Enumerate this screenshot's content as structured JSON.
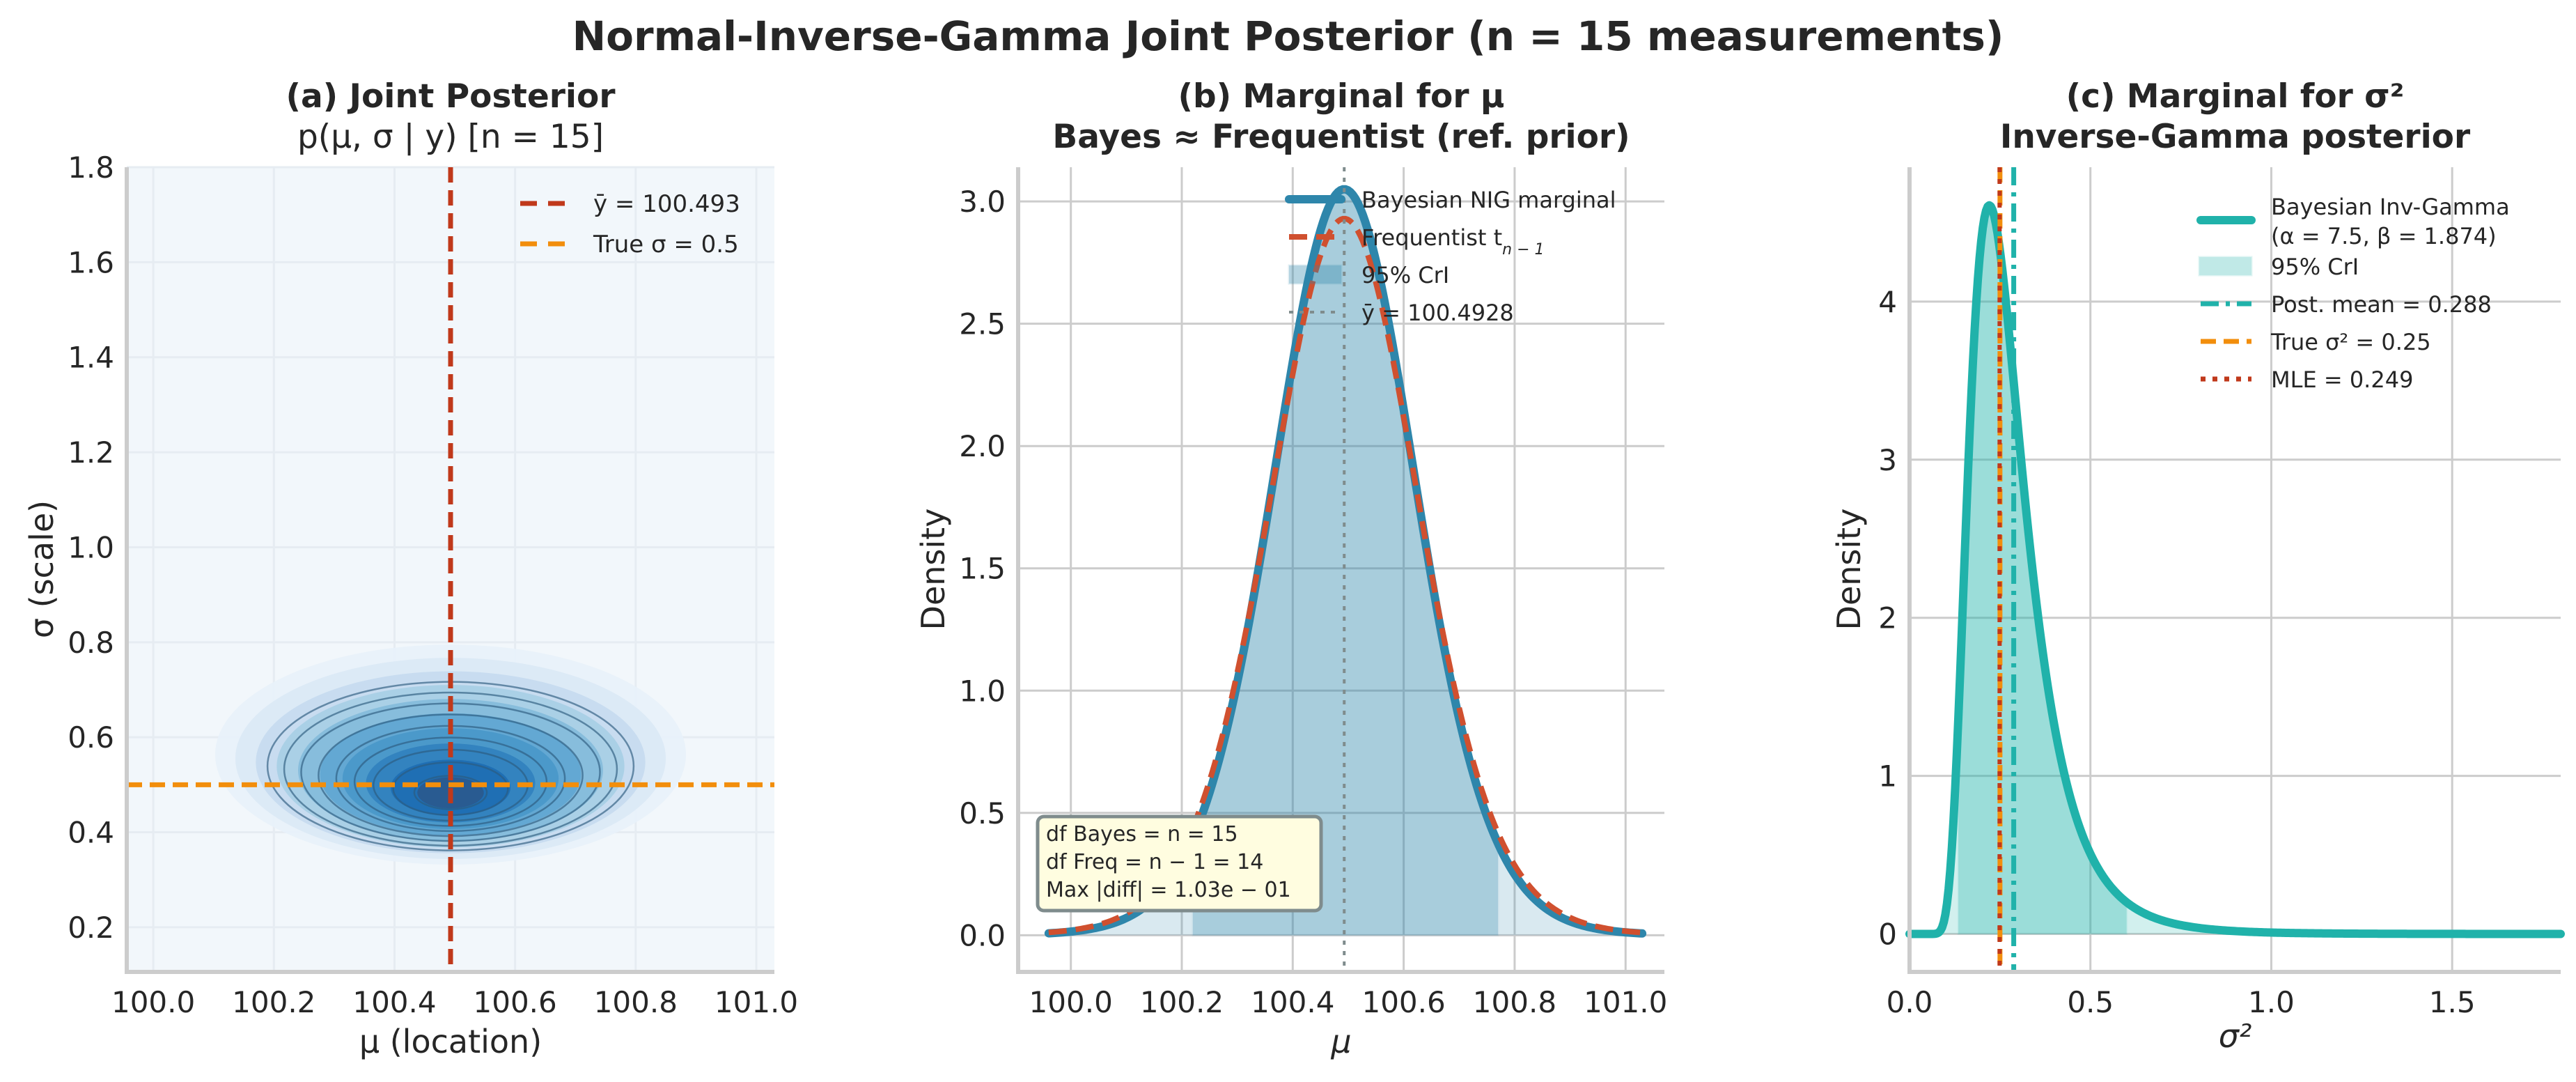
{
  "figure": {
    "suptitle": "Normal-Inverse-Gamma Joint Posterior  (n = 15 measurements)"
  },
  "chart_data": [
    {
      "id": "a",
      "type": "contour",
      "title_line1": "(a) Joint Posterior",
      "title_line2": "p(μ, σ | y)   [n = 15]",
      "xlabel": "μ (location)",
      "ylabel": "σ (scale)",
      "xlim": [
        99.956,
        101.03
      ],
      "ylim": [
        0.106,
        1.8
      ],
      "xticks": [
        100.0,
        100.2,
        100.4,
        100.6,
        100.8,
        101.0
      ],
      "xtick_labels": [
        "100.0",
        "100.2",
        "100.4",
        "100.6",
        "100.8",
        "101.0"
      ],
      "yticks": [
        0.2,
        0.4,
        0.6,
        0.8,
        1.0,
        1.2,
        1.4,
        1.6,
        1.8
      ],
      "ytick_labels": [
        "0.2",
        "0.4",
        "0.6",
        "0.8",
        "1.0",
        "1.2",
        "1.4",
        "1.6",
        "1.8"
      ],
      "grid": true,
      "background": "#f2f7fb",
      "contour": {
        "colormap": "Blues",
        "center_mu": 100.493,
        "mode_sigma": 0.47,
        "outer_mu_range": [
          100.17,
          100.81
        ],
        "outer_sigma_range": [
          0.35,
          0.73
        ],
        "levels": 10
      },
      "lines": [
        {
          "name": "ȳ = 100.493",
          "orientation": "vertical",
          "value": 100.493,
          "color": "#c0391b",
          "style": "dashed"
        },
        {
          "name": "True σ = 0.5",
          "orientation": "horizontal",
          "value": 0.5,
          "color": "#f28e0c",
          "style": "dashed"
        }
      ],
      "legend": {
        "position": "upper right",
        "entries": [
          {
            "label": "ȳ = 100.493",
            "color": "#c0391b",
            "style": "dashed"
          },
          {
            "label": "True σ = 0.5",
            "color": "#f28e0c",
            "style": "dashed"
          }
        ]
      }
    },
    {
      "id": "b",
      "type": "line",
      "title_line1": "(b) Marginal for μ",
      "title_line2": "Bayes ≈ Frequentist (ref. prior)",
      "xlabel": "μ",
      "ylabel": "Density",
      "xlim": [
        99.905,
        101.07
      ],
      "ylim": [
        -0.15,
        3.14
      ],
      "xticks": [
        100.0,
        100.2,
        100.4,
        100.6,
        100.8,
        101.0
      ],
      "xtick_labels": [
        "100.0",
        "100.2",
        "100.4",
        "100.6",
        "100.8",
        "101.0"
      ],
      "yticks": [
        0.0,
        0.5,
        1.0,
        1.5,
        2.0,
        2.5,
        3.0
      ],
      "ytick_labels": [
        "0.0",
        "0.5",
        "1.0",
        "1.5",
        "2.0",
        "2.5",
        "3.0"
      ],
      "grid": true,
      "x_range": [
        99.96,
        101.03
      ],
      "series": [
        {
          "name": "Bayesian NIG marginal",
          "dist": "student_t",
          "df": 15,
          "loc": 100.4928,
          "peak": 3.05,
          "color": "#2e86ab",
          "style": "solid",
          "width": 12
        },
        {
          "name": "Frequentist t_{n-1}",
          "dist": "student_t",
          "df": 14,
          "loc": 100.4928,
          "peak": 2.93,
          "color": "#d0502f",
          "style": "dashed",
          "width": 8
        }
      ],
      "cri": {
        "lower": 100.22,
        "upper": 100.77,
        "color": "#2e86ab"
      },
      "vline": {
        "name": "ȳ = 100.4928",
        "value": 100.4928,
        "color": "#7f8c8d",
        "style": "dotted"
      },
      "legend": {
        "position": "upper right",
        "entries": [
          {
            "label": "Bayesian NIG marginal",
            "kind": "line",
            "color": "#2e86ab"
          },
          {
            "label": "Frequentist t",
            "sub": "n − 1",
            "kind": "dashed",
            "color": "#d0502f"
          },
          {
            "label": "95% CrI",
            "kind": "patch",
            "color": "#2e86ab"
          },
          {
            "label": "ȳ = 100.4928",
            "kind": "dotted",
            "color": "#7f8c8d"
          }
        ]
      },
      "annotation": {
        "lines": [
          "df Bayes  = n = 15",
          "df Freq   = n − 1 = 14",
          "Max |diff|  = 1.03e − 01"
        ],
        "bg": "#fffde0",
        "border": "#7f8c8d"
      }
    },
    {
      "id": "c",
      "type": "line",
      "title_line1": "(c) Marginal for σ²",
      "title_line2": "Inverse-Gamma posterior",
      "xlabel": "σ²",
      "ylabel": "Density",
      "xlim": [
        0.0,
        1.8
      ],
      "ylim": [
        -0.24,
        4.85
      ],
      "xticks": [
        0.0,
        0.5,
        1.0,
        1.5
      ],
      "xtick_labels": [
        "0.0",
        "0.5",
        "1.0",
        "1.5"
      ],
      "yticks": [
        0,
        1,
        2,
        3,
        4
      ],
      "ytick_labels": [
        "0",
        "1",
        "2",
        "3",
        "4"
      ],
      "grid": true,
      "series": [
        {
          "name": "Bayesian Inv-Gamma (α = 7.5, β = 1.874)",
          "dist": "inv_gamma",
          "alpha": 7.5,
          "beta": 1.874,
          "color": "#20b2aa",
          "style": "solid",
          "width": 12
        }
      ],
      "cri": {
        "lower": 0.135,
        "upper": 0.6,
        "color": "#20b2aa"
      },
      "vlines": [
        {
          "name": "Post. mean = 0.288",
          "value": 0.288,
          "color": "#20b2aa",
          "style": "dashdot"
        },
        {
          "name": "True σ² = 0.25",
          "value": 0.25,
          "color": "#f28e0c",
          "style": "dashed"
        },
        {
          "name": "MLE = 0.249",
          "value": 0.249,
          "color": "#c0391b",
          "style": "dotted"
        }
      ],
      "legend": {
        "position": "upper right",
        "entries": [
          {
            "label": "Bayesian Inv-Gamma",
            "label2": "(α = 7.5, β = 1.874)",
            "kind": "line",
            "color": "#20b2aa"
          },
          {
            "label": "95% CrI",
            "kind": "patch",
            "color": "#20b2aa"
          },
          {
            "label": "Post. mean = 0.288",
            "kind": "dashdot",
            "color": "#20b2aa"
          },
          {
            "label": "True σ² = 0.25",
            "kind": "dashed",
            "color": "#f28e0c"
          },
          {
            "label": "MLE  = 0.249",
            "kind": "dotted",
            "color": "#c0391b"
          }
        ]
      }
    }
  ]
}
